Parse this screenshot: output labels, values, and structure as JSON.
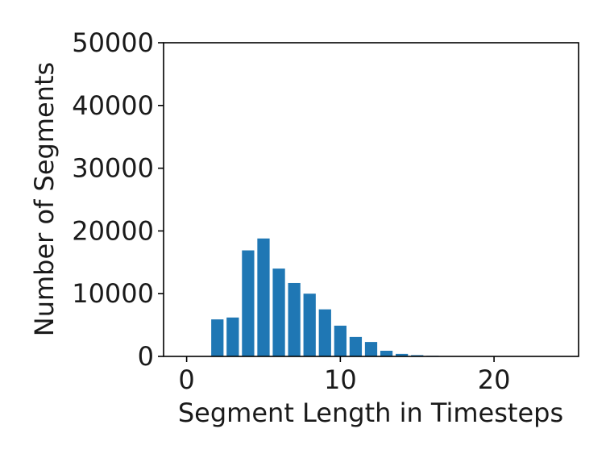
{
  "chart_data": {
    "type": "bar",
    "xlabel": "Segment Length in Timesteps",
    "ylabel": "Number of Segments",
    "xlim": [
      -1.5,
      25.5
    ],
    "ylim": [
      0,
      50000
    ],
    "x_ticks": [
      0,
      10,
      20
    ],
    "x_tick_labels": [
      "0",
      "10",
      "20"
    ],
    "y_ticks": [
      0,
      10000,
      20000,
      30000,
      40000,
      50000
    ],
    "y_tick_labels": [
      "0",
      "10000",
      "20000",
      "30000",
      "40000",
      "50000"
    ],
    "grid": false,
    "bar_color": "#1f77b4",
    "x": [
      1,
      2,
      3,
      4,
      5,
      6,
      7,
      8,
      9,
      10,
      11,
      12,
      13,
      14,
      15,
      16,
      17,
      18,
      19,
      20,
      21,
      22,
      23,
      24
    ],
    "values": [
      0,
      5900,
      6200,
      16900,
      18800,
      14000,
      11700,
      10000,
      7500,
      4900,
      3100,
      2300,
      900,
      400,
      200,
      100,
      50,
      30,
      20,
      10,
      5,
      5,
      5,
      5
    ]
  }
}
